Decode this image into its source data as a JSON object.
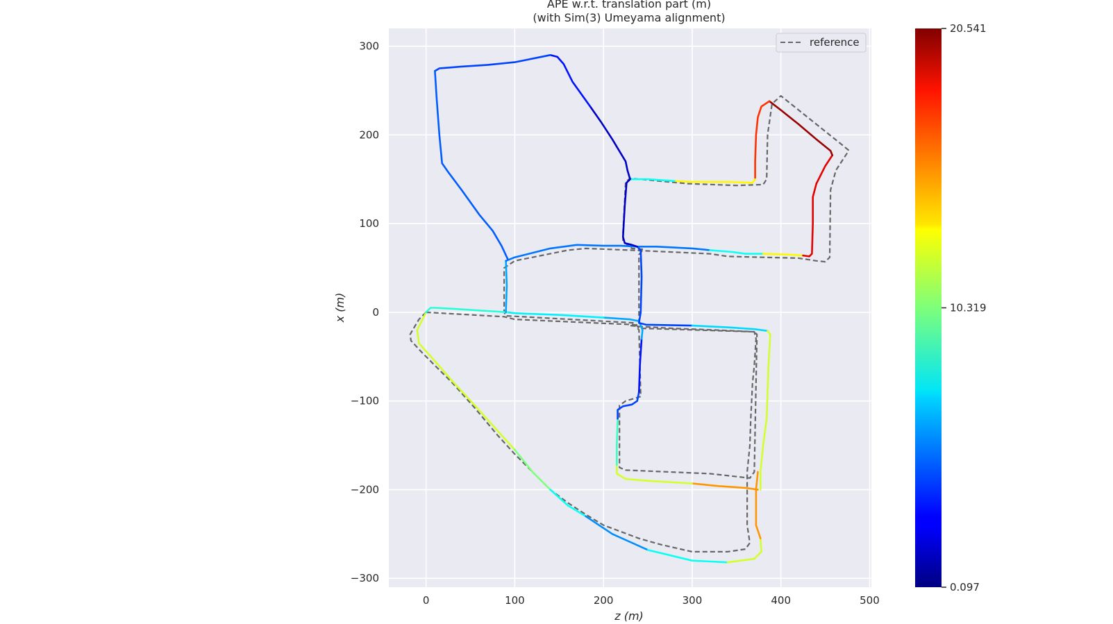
{
  "chart_data": {
    "type": "line",
    "title": "APE w.r.t. translation part (m)",
    "subtitle": "(with Sim(3) Umeyama alignment)",
    "xlabel": "z (m)",
    "ylabel": "x (m)",
    "xlim": [
      -42,
      502
    ],
    "ylim": [
      -310,
      320
    ],
    "x_ticks": [
      0,
      100,
      200,
      300,
      400,
      500
    ],
    "y_ticks": [
      300,
      200,
      100,
      0,
      -100,
      -200,
      -300
    ],
    "x_tick_labels": [
      "0",
      "100",
      "200",
      "300",
      "400",
      "500"
    ],
    "y_tick_labels": [
      "300",
      "200",
      "100",
      "0",
      "−100",
      "−200",
      "−300"
    ],
    "grid": true,
    "background": "#eaeaf2",
    "legend": {
      "position": "top-right",
      "entries": [
        "reference"
      ]
    },
    "colorbar": {
      "colormap": "jet",
      "min": 0.097,
      "max": 20.541,
      "tick_values": [
        20.541,
        10.319,
        0.097
      ],
      "tick_labels": [
        "20.541",
        "10.319",
        "0.097"
      ]
    },
    "reference": {
      "name": "reference",
      "color": "#666666",
      "style": "dashed",
      "points": [
        [
          0,
          0
        ],
        [
          88,
          -5
        ],
        [
          100,
          -8
        ],
        [
          235,
          -14
        ],
        [
          240,
          -20
        ],
        [
          242,
          -95
        ],
        [
          225,
          -100
        ],
        [
          218,
          -105
        ],
        [
          218,
          -175
        ],
        [
          225,
          -178
        ],
        [
          320,
          -182
        ],
        [
          365,
          -187
        ],
        [
          370,
          -180
        ],
        [
          373,
          -25
        ],
        [
          370,
          -22
        ],
        [
          240,
          -18
        ],
        [
          235,
          -12
        ],
        [
          90,
          -4
        ],
        [
          88,
          0
        ],
        [
          88,
          40
        ],
        [
          88,
          50
        ],
        [
          100,
          58
        ],
        [
          160,
          70
        ],
        [
          180,
          72
        ],
        [
          230,
          70
        ],
        [
          320,
          66
        ],
        [
          340,
          63
        ],
        [
          380,
          62
        ],
        [
          420,
          61
        ],
        [
          440,
          58
        ],
        [
          450,
          57
        ],
        [
          455,
          62
        ],
        [
          456,
          138
        ],
        [
          462,
          160
        ],
        [
          475,
          180
        ],
        [
          476,
          183
        ],
        [
          470,
          188
        ],
        [
          400,
          244
        ],
        [
          390,
          235
        ],
        [
          385,
          200
        ],
        [
          384,
          150
        ],
        [
          380,
          144
        ],
        [
          350,
          143
        ],
        [
          295,
          145
        ],
        [
          230,
          151
        ],
        [
          225,
          147
        ],
        [
          222,
          90
        ],
        [
          222,
          80
        ],
        [
          232,
          72
        ],
        [
          245,
          71
        ],
        [
          240,
          65
        ],
        [
          240,
          -14
        ],
        [
          230,
          -15
        ],
        [
          240,
          -16
        ],
        [
          275,
          -18
        ],
        [
          325,
          -20
        ],
        [
          370,
          -22
        ],
        [
          372,
          -30
        ],
        [
          370,
          -60
        ],
        [
          368,
          -80
        ],
        [
          366,
          -120
        ],
        [
          365,
          -150
        ],
        [
          362,
          -180
        ],
        [
          362,
          -200
        ],
        [
          362,
          -215
        ],
        [
          362,
          -240
        ],
        [
          365,
          -260
        ],
        [
          360,
          -267
        ],
        [
          340,
          -270
        ],
        [
          300,
          -270
        ],
        [
          265,
          -262
        ],
        [
          240,
          -255
        ],
        [
          200,
          -240
        ],
        [
          180,
          -228
        ],
        [
          160,
          -215
        ],
        [
          140,
          -200
        ],
        [
          120,
          -180
        ],
        [
          100,
          -160
        ],
        [
          80,
          -138
        ],
        [
          55,
          -108
        ],
        [
          30,
          -80
        ],
        [
          10,
          -60
        ],
        [
          -5,
          -45
        ],
        [
          -17,
          -32
        ],
        [
          -18,
          -25
        ],
        [
          -14,
          -18
        ],
        [
          -8,
          -8
        ],
        [
          -2,
          -2
        ],
        [
          0,
          0
        ]
      ],
      "loop_closing_note": ""
    },
    "estimate_segments": [
      {
        "error": 12.0,
        "points": [
          [
            0,
            0
          ],
          [
            -10,
            -20
          ],
          [
            -8,
            -35
          ],
          [
            10,
            -55
          ],
          [
            30,
            -78
          ],
          [
            55,
            -105
          ],
          [
            80,
            -133
          ],
          [
            100,
            -155
          ]
        ]
      },
      {
        "error": 10.3,
        "points": [
          [
            100,
            -155
          ],
          [
            120,
            -180
          ],
          [
            140,
            -200
          ]
        ]
      },
      {
        "error": 8.0,
        "points": [
          [
            140,
            -200
          ],
          [
            160,
            -218
          ],
          [
            180,
            -230
          ]
        ]
      },
      {
        "error": 5.5,
        "points": [
          [
            180,
            -230
          ],
          [
            210,
            -250
          ],
          [
            250,
            -268
          ]
        ]
      },
      {
        "error": 8.0,
        "points": [
          [
            250,
            -268
          ],
          [
            300,
            -280
          ],
          [
            340,
            -282
          ]
        ]
      },
      {
        "error": 12.0,
        "points": [
          [
            340,
            -282
          ],
          [
            370,
            -278
          ],
          [
            378,
            -270
          ],
          [
            377,
            -255
          ]
        ]
      },
      {
        "error": 15.0,
        "points": [
          [
            377,
            -255
          ],
          [
            372,
            -240
          ],
          [
            372,
            -200
          ],
          [
            374,
            -180
          ]
        ]
      },
      {
        "error": 15.0,
        "points": [
          [
            374,
            -200
          ],
          [
            360,
            -198
          ],
          [
            330,
            -196
          ],
          [
            300,
            -193
          ]
        ]
      },
      {
        "error": 12.0,
        "points": [
          [
            300,
            -193
          ],
          [
            250,
            -190
          ],
          [
            225,
            -188
          ],
          [
            215,
            -182
          ],
          [
            215,
            -172
          ]
        ]
      },
      {
        "error": 9.0,
        "points": [
          [
            215,
            -172
          ],
          [
            215,
            -150
          ],
          [
            216,
            -120
          ]
        ]
      },
      {
        "error": 4.0,
        "points": [
          [
            216,
            -120
          ],
          [
            216,
            -110
          ],
          [
            222,
            -106
          ],
          [
            232,
            -104
          ],
          [
            238,
            -100
          ],
          [
            240,
            -90
          ]
        ]
      },
      {
        "error": 3.0,
        "points": [
          [
            240,
            -90
          ],
          [
            241,
            -60
          ],
          [
            243,
            -30
          ]
        ]
      },
      {
        "error": 6.0,
        "points": [
          [
            243,
            -30
          ],
          [
            244,
            -20
          ],
          [
            240,
            -10
          ],
          [
            230,
            -8
          ],
          [
            200,
            -6
          ]
        ]
      },
      {
        "error": 7.5,
        "points": [
          [
            200,
            -6
          ],
          [
            150,
            -3
          ],
          [
            100,
            -1
          ],
          [
            92,
            0
          ]
        ]
      },
      {
        "error": 8.5,
        "points": [
          [
            92,
            0
          ],
          [
            60,
            2
          ],
          [
            30,
            4
          ],
          [
            10,
            5
          ],
          [
            5,
            5
          ],
          [
            0,
            0
          ]
        ]
      },
      {
        "error": 6.0,
        "points": [
          [
            90,
            0
          ],
          [
            91,
            30
          ],
          [
            90,
            58
          ]
        ]
      },
      {
        "error": 5.0,
        "points": [
          [
            90,
            58
          ],
          [
            100,
            62
          ],
          [
            140,
            72
          ],
          [
            170,
            76
          ],
          [
            200,
            75
          ],
          [
            220,
            75
          ],
          [
            238,
            74
          ]
        ]
      },
      {
        "error": 4.0,
        "points": [
          [
            238,
            74
          ],
          [
            242,
            70
          ],
          [
            243,
            40
          ],
          [
            242,
            0
          ],
          [
            240,
            -12
          ],
          [
            248,
            -14
          ],
          [
            300,
            -15
          ]
        ]
      },
      {
        "error": 7.0,
        "points": [
          [
            300,
            -15
          ],
          [
            340,
            -17
          ],
          [
            370,
            -19
          ],
          [
            385,
            -21
          ]
        ]
      },
      {
        "error": 12.0,
        "points": [
          [
            385,
            -21
          ],
          [
            388,
            -25
          ],
          [
            386,
            -60
          ],
          [
            384,
            -120
          ],
          [
            380,
            -150
          ],
          [
            377,
            -180
          ],
          [
            377,
            -200
          ]
        ]
      },
      {
        "error": 5.0,
        "points": [
          [
            238,
            74
          ],
          [
            260,
            74
          ],
          [
            300,
            72
          ],
          [
            320,
            70
          ]
        ]
      },
      {
        "error": 8.0,
        "points": [
          [
            320,
            70
          ],
          [
            345,
            68
          ],
          [
            360,
            66
          ],
          [
            380,
            66
          ]
        ]
      },
      {
        "error": 13.0,
        "points": [
          [
            380,
            66
          ],
          [
            410,
            65
          ],
          [
            425,
            64
          ]
        ]
      },
      {
        "error": 18.5,
        "points": [
          [
            425,
            64
          ],
          [
            432,
            63
          ],
          [
            435,
            66
          ],
          [
            436,
            100
          ],
          [
            436,
            130
          ],
          [
            440,
            145
          ],
          [
            450,
            165
          ],
          [
            458,
            177
          ]
        ]
      },
      {
        "error": 20.0,
        "points": [
          [
            458,
            177
          ],
          [
            456,
            182
          ],
          [
            440,
            195
          ],
          [
            420,
            212
          ],
          [
            400,
            228
          ],
          [
            387,
            238
          ]
        ]
      },
      {
        "error": 17.0,
        "points": [
          [
            387,
            238
          ],
          [
            378,
            232
          ],
          [
            374,
            220
          ],
          [
            372,
            200
          ],
          [
            371,
            170
          ],
          [
            371,
            150
          ]
        ]
      },
      {
        "error": 13.0,
        "points": [
          [
            371,
            150
          ],
          [
            368,
            146
          ],
          [
            340,
            147
          ],
          [
            300,
            147
          ],
          [
            280,
            148
          ]
        ]
      },
      {
        "error": 8.0,
        "points": [
          [
            280,
            148
          ],
          [
            250,
            150
          ],
          [
            230,
            150
          ]
        ]
      },
      {
        "error": 1.5,
        "points": [
          [
            230,
            150
          ],
          [
            226,
            146
          ],
          [
            224,
            120
          ],
          [
            222,
            85
          ],
          [
            224,
            78
          ],
          [
            232,
            76
          ],
          [
            238,
            74
          ]
        ]
      },
      {
        "error": 1.5,
        "points": [
          [
            230,
            150
          ],
          [
            227,
            160
          ],
          [
            225,
            170
          ],
          [
            210,
            195
          ],
          [
            197,
            215
          ],
          [
            185,
            232
          ]
        ]
      },
      {
        "error": 3.0,
        "points": [
          [
            185,
            232
          ],
          [
            165,
            260
          ],
          [
            155,
            280
          ],
          [
            148,
            288
          ],
          [
            140,
            290
          ]
        ]
      },
      {
        "error": 4.0,
        "points": [
          [
            140,
            290
          ],
          [
            125,
            287
          ],
          [
            100,
            282
          ],
          [
            70,
            279
          ],
          [
            40,
            277
          ],
          [
            15,
            275
          ],
          [
            10,
            272
          ]
        ]
      },
      {
        "error": 4.5,
        "points": [
          [
            10,
            272
          ],
          [
            12,
            240
          ],
          [
            15,
            200
          ],
          [
            18,
            168
          ],
          [
            25,
            158
          ],
          [
            40,
            138
          ],
          [
            60,
            110
          ],
          [
            75,
            92
          ],
          [
            85,
            75
          ],
          [
            92,
            60
          ]
        ]
      }
    ]
  }
}
